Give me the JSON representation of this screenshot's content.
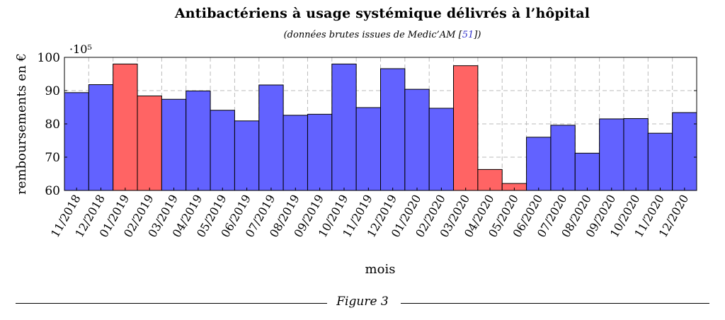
{
  "figure": {
    "title": "Antibactériens à usage systémique délivrés à l’hôpital",
    "subtitle_prefix": "(données brutes issues de Medic’AM [",
    "subtitle_ref": "51",
    "subtitle_suffix": "])",
    "caption": "Figure 3"
  },
  "colors": {
    "normal": "#6262ff",
    "highlight": "#ff6464",
    "grid": "#bbbbbb"
  },
  "chart_data": {
    "type": "bar",
    "title": "Antibactériens à usage systémique délivrés à l’hôpital",
    "subtitle": "(données brutes issues de Medic’AM [51])",
    "xlabel": "mois",
    "ylabel": "remboursements en €",
    "y_multiplier": "·10⁵",
    "ylim": [
      60,
      100
    ],
    "yticks": [
      60,
      70,
      80,
      90,
      100
    ],
    "grid": true,
    "categories": [
      "11/2018",
      "12/2018",
      "01/2019",
      "02/2019",
      "03/2019",
      "04/2019",
      "05/2019",
      "06/2019",
      "07/2019",
      "08/2019",
      "09/2019",
      "10/2019",
      "11/2019",
      "12/2019",
      "01/2020",
      "02/2020",
      "03/2020",
      "04/2020",
      "05/2020",
      "06/2020",
      "07/2020",
      "08/2020",
      "09/2020",
      "10/2020",
      "11/2020",
      "12/2020"
    ],
    "values": [
      89.4,
      91.8,
      98.0,
      88.4,
      87.4,
      89.9,
      84.1,
      80.9,
      91.7,
      82.6,
      82.9,
      98.0,
      84.9,
      96.6,
      90.4,
      84.7,
      97.5,
      66.3,
      62.1,
      76.0,
      79.6,
      71.2,
      81.5,
      81.6,
      77.2,
      83.4
    ],
    "highlighted": [
      "01/2019",
      "02/2019",
      "03/2020",
      "04/2020",
      "05/2020"
    ]
  }
}
